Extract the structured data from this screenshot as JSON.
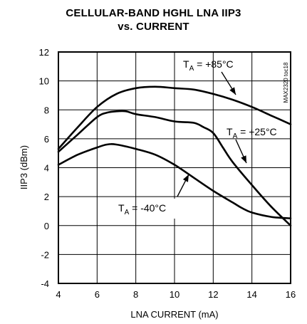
{
  "chart_data": {
    "type": "line",
    "title_line1": "CELLULAR-BAND HGHL LNA IIP3",
    "title_line2": "vs. CURRENT",
    "xlabel": "LNA CURRENT (mA)",
    "ylabel": "IIP3 (dBm)",
    "xlim": [
      4,
      16
    ],
    "ylim": [
      -4,
      12
    ],
    "x_ticks": [
      4,
      6,
      8,
      10,
      12,
      14,
      16
    ],
    "y_ticks": [
      -4,
      -2,
      0,
      2,
      4,
      6,
      8,
      10,
      12
    ],
    "grid": true,
    "figure_id": "MAX2320 toc18",
    "series": [
      {
        "name": "TA = +85°C",
        "label_main": "T",
        "label_sub": "A",
        "label_rest": " = +85°C",
        "x": [
          4,
          5,
          6,
          7,
          8,
          9,
          10,
          11,
          12,
          13,
          14,
          15,
          16
        ],
        "y": [
          5.3,
          6.8,
          8.2,
          9.1,
          9.5,
          9.6,
          9.5,
          9.4,
          9.1,
          8.7,
          8.2,
          7.6,
          7.0
        ]
      },
      {
        "name": "TA = +25°C",
        "label_main": "T",
        "label_sub": "A",
        "label_rest": " = +25°C",
        "x": [
          4,
          5,
          6,
          6.5,
          7,
          7.5,
          8,
          9,
          10,
          11,
          11.5,
          12,
          12.5,
          13,
          14,
          15,
          16
        ],
        "y": [
          5.1,
          6.3,
          7.5,
          7.8,
          7.9,
          7.9,
          7.7,
          7.5,
          7.2,
          7.1,
          6.8,
          6.4,
          5.4,
          4.4,
          2.8,
          1.3,
          0.0
        ]
      },
      {
        "name": "TA = -40°C",
        "label_main": "T",
        "label_sub": "A",
        "label_rest": " = -40°C",
        "x": [
          4,
          5,
          6,
          6.5,
          7,
          8,
          9,
          10,
          11,
          12,
          13,
          13.5,
          14,
          15,
          16
        ],
        "y": [
          4.2,
          4.9,
          5.4,
          5.6,
          5.6,
          5.3,
          4.9,
          4.2,
          3.3,
          2.4,
          1.6,
          1.2,
          0.9,
          0.6,
          0.5
        ]
      }
    ]
  }
}
